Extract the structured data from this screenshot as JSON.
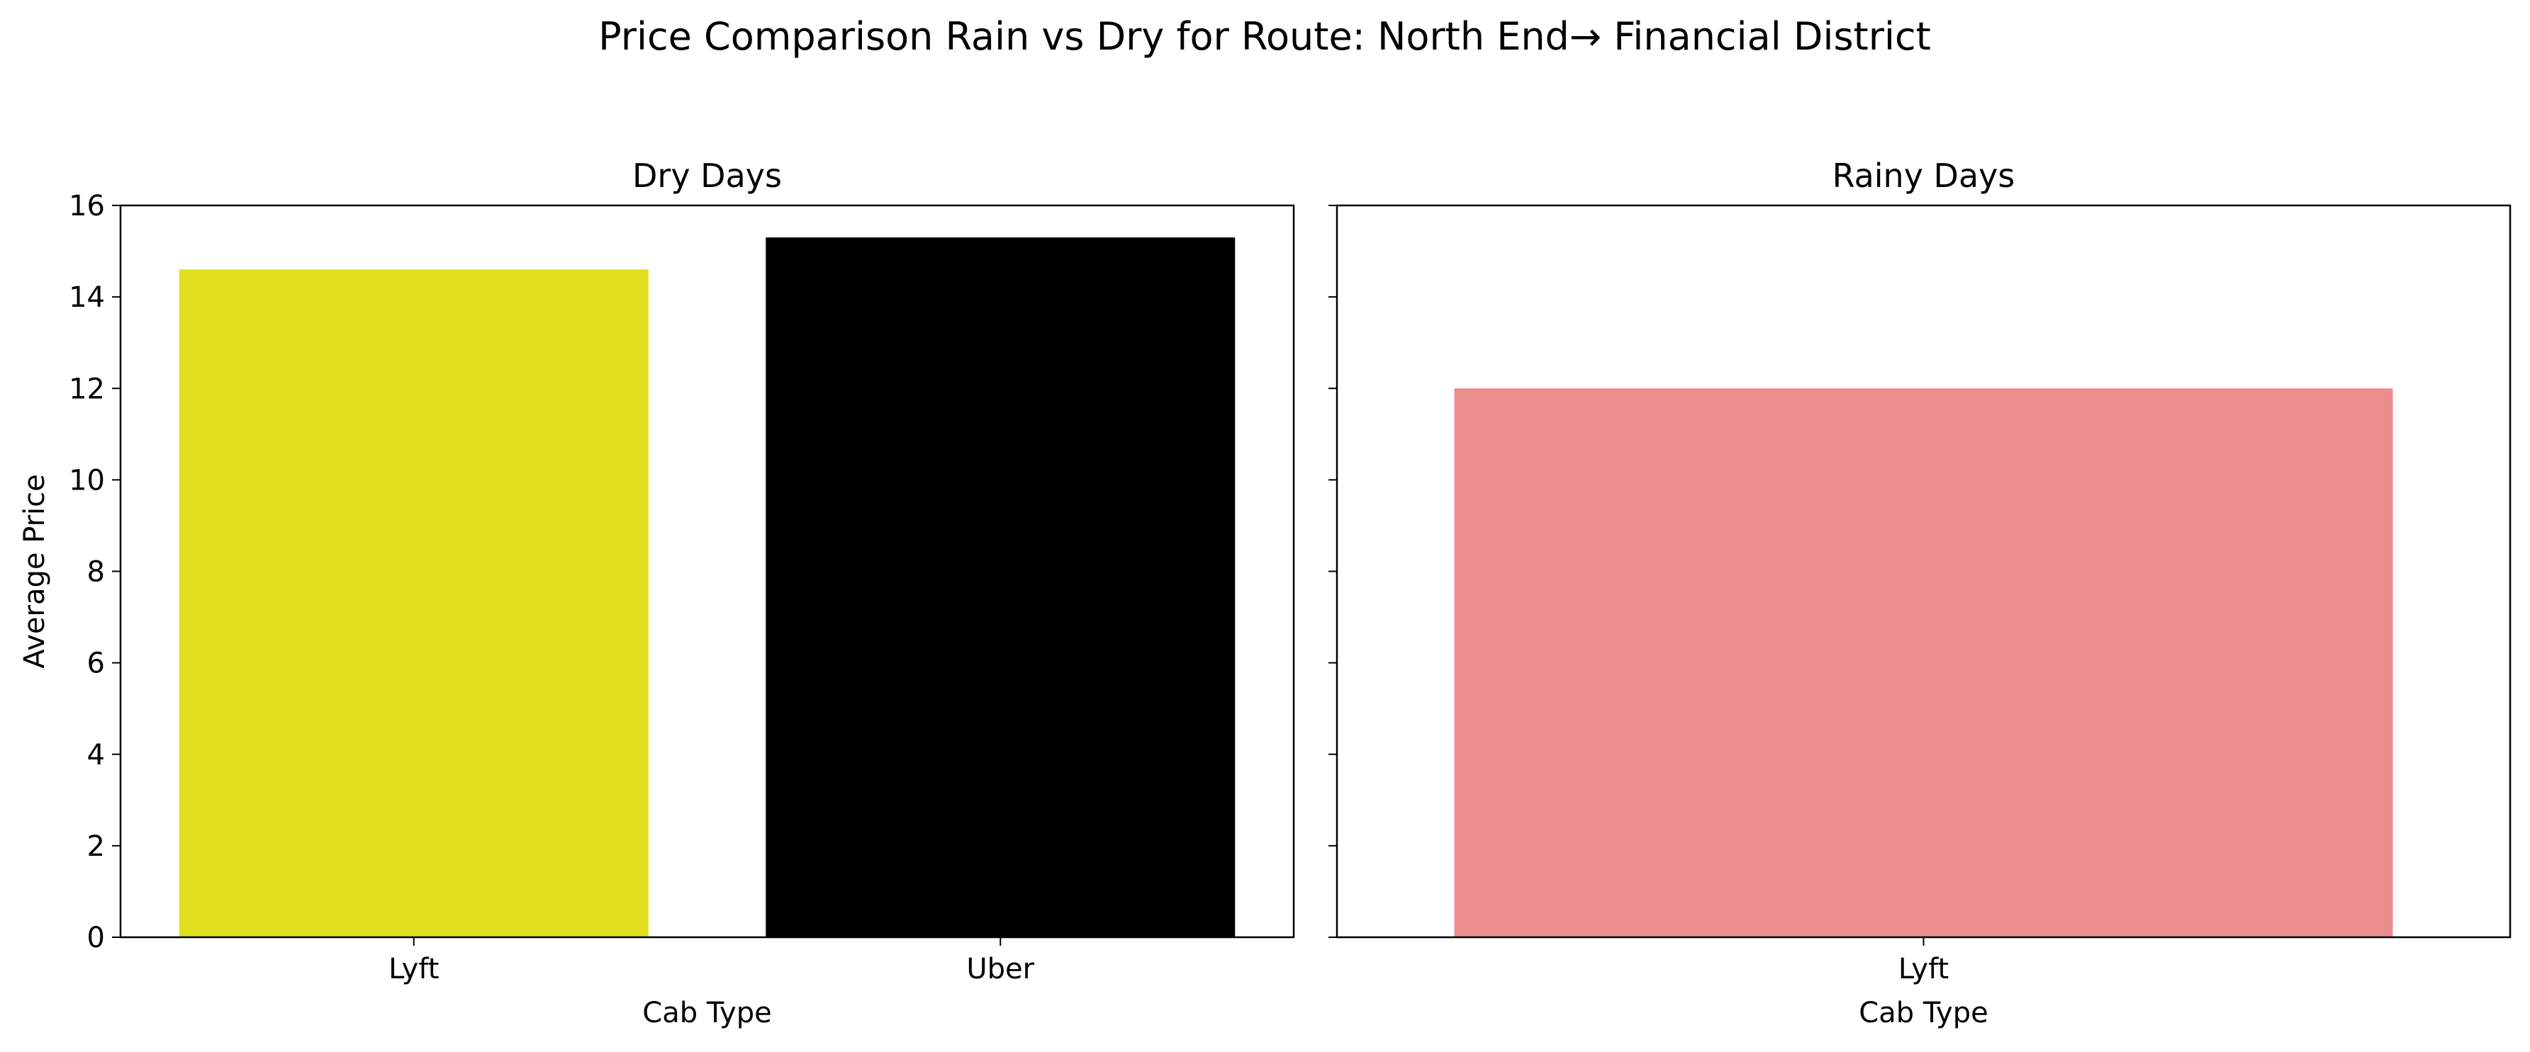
{
  "figure": {
    "suptitle": "Price Comparison Rain vs Dry for Route: North End→ Financial District"
  },
  "chart_data": [
    {
      "type": "bar",
      "title": "Dry Days",
      "xlabel": "Cab Type",
      "ylabel": "Average Price",
      "ylim": [
        0,
        16
      ],
      "yticks": [
        "0",
        "2",
        "4",
        "6",
        "8",
        "10",
        "12",
        "14",
        "16"
      ],
      "grid": false,
      "categories": [
        "Lyft",
        "Uber"
      ],
      "values": [
        14.6,
        15.3
      ],
      "colors": [
        "#e0e01e",
        "#000000"
      ]
    },
    {
      "type": "bar",
      "title": "Rainy Days",
      "xlabel": "Cab Type",
      "ylabel": "",
      "ylim": [
        0,
        16
      ],
      "sharey": true,
      "grid": false,
      "categories": [
        "Lyft"
      ],
      "values": [
        12.0
      ],
      "colors": [
        "#ec8e8e"
      ]
    }
  ]
}
